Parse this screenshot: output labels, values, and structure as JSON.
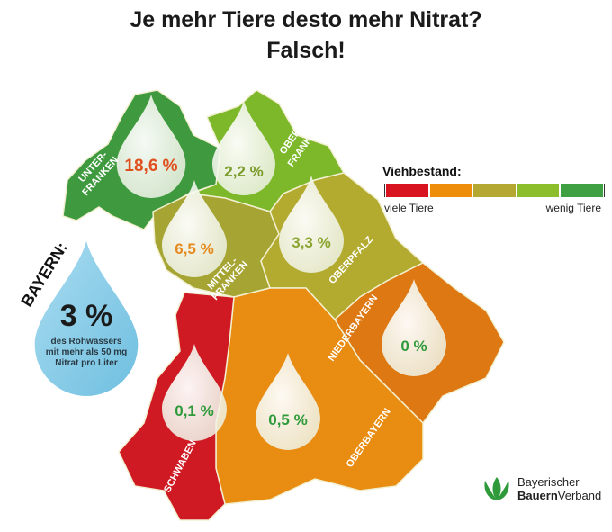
{
  "title_line1": "Je mehr Tiere desto mehr Nitrat?",
  "title_line2": "Falsch!",
  "legend": {
    "title": "Viehbestand:",
    "low_label": "viele Tiere",
    "high_label": "wenig Tiere",
    "colors": [
      "#d7141f",
      "#ee8c0c",
      "#b4a832",
      "#8cbd2a",
      "#3f9f43"
    ]
  },
  "bayern": {
    "label": "BAYERN:",
    "value": "3 %",
    "line1": "des Rohwassers",
    "line2": "mit mehr als 50 mg",
    "line3": "Nitrat pro Liter"
  },
  "regions": [
    {
      "name": "UNTER-",
      "name2": "FRANKEN",
      "value": "18,6 %",
      "fill": "#3f9a3f",
      "value_color": "#e0501f"
    },
    {
      "name": "OBER-",
      "name2": "FRANKEN",
      "value": "2,2 %",
      "fill": "#7db82b",
      "value_color": "#7a9a2a"
    },
    {
      "name": "MITTEL-",
      "name2": "FRANKEN",
      "value": "6,5 %",
      "fill": "#a6a534",
      "value_color": "#e58a1e"
    },
    {
      "name": "OBERPFALZ",
      "name2": "",
      "value": "3,3 %",
      "fill": "#b3ab2f",
      "value_color": "#8aa530"
    },
    {
      "name": "NIEDERBAYERN",
      "name2": "",
      "value": "0 %",
      "fill": "#dd7812",
      "value_color": "#2f9a3a"
    },
    {
      "name": "SCHWABEN",
      "name2": "",
      "value": "0,1 %",
      "fill": "#cf1a24",
      "value_color": "#2f9a3a"
    },
    {
      "name": "OBERBAYERN",
      "name2": "",
      "value": "0,5 %",
      "fill": "#e98c12",
      "value_color": "#2f9a3a"
    }
  ],
  "logo": {
    "line1": "Bayerischer",
    "line2_bold": "Bauern",
    "line2_rest": "Verband"
  }
}
